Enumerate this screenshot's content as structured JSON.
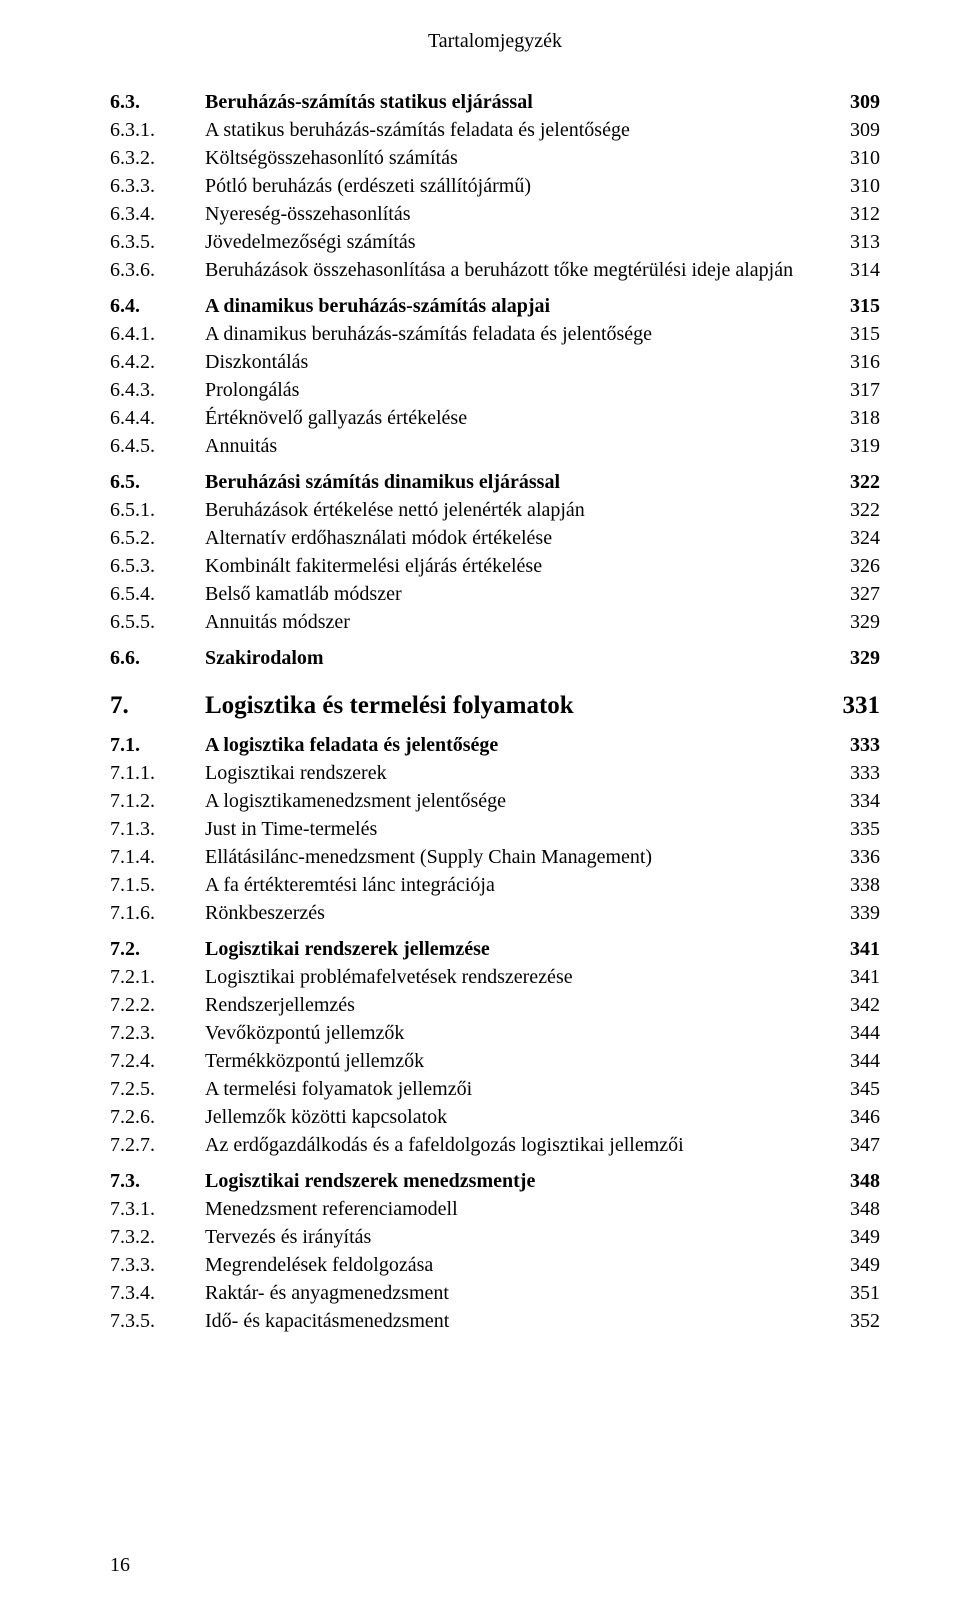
{
  "header": "Tartalomjegyzék",
  "footer_page": "16",
  "entries": [
    {
      "num": "6.3.",
      "title": "Beruházás-számítás statikus eljárással",
      "page": "309",
      "bold": true,
      "level": 2,
      "space_before": "none"
    },
    {
      "num": "6.3.1.",
      "title": "A statikus beruházás-számítás feladata és jelentősége",
      "page": "309",
      "bold": false,
      "level": 3,
      "space_before": "none"
    },
    {
      "num": "6.3.2.",
      "title": "Költségösszehasonlító számítás",
      "page": "310",
      "bold": false,
      "level": 3,
      "space_before": "none"
    },
    {
      "num": "6.3.3.",
      "title": "Pótló beruházás (erdészeti szállítójármű)",
      "page": "310",
      "bold": false,
      "level": 3,
      "space_before": "none"
    },
    {
      "num": "6.3.4.",
      "title": "Nyereség-összehasonlítás",
      "page": "312",
      "bold": false,
      "level": 3,
      "space_before": "none"
    },
    {
      "num": "6.3.5.",
      "title": "Jövedelmezőségi számítás",
      "page": "313",
      "bold": false,
      "level": 3,
      "space_before": "none"
    },
    {
      "num": "6.3.6.",
      "title": "Beruházások összehasonlítása a beruházott tőke megtérülési ideje alapján",
      "page": "314",
      "bold": false,
      "level": 3,
      "space_before": "none"
    },
    {
      "num": "6.4.",
      "title": "A dinamikus beruházás-számítás alapjai",
      "page": "315",
      "bold": true,
      "level": 2,
      "space_before": "sm"
    },
    {
      "num": "6.4.1.",
      "title": "A dinamikus beruházás-számítás feladata és jelentősége",
      "page": "315",
      "bold": false,
      "level": 3,
      "space_before": "none"
    },
    {
      "num": "6.4.2.",
      "title": "Diszkontálás",
      "page": "316",
      "bold": false,
      "level": 3,
      "space_before": "none"
    },
    {
      "num": "6.4.3.",
      "title": "Prolongálás",
      "page": "317",
      "bold": false,
      "level": 3,
      "space_before": "none"
    },
    {
      "num": "6.4.4.",
      "title": "Értéknövelő gallyazás értékelése",
      "page": "318",
      "bold": false,
      "level": 3,
      "space_before": "none"
    },
    {
      "num": "6.4.5.",
      "title": "Annuitás",
      "page": "319",
      "bold": false,
      "level": 3,
      "space_before": "none"
    },
    {
      "num": "6.5.",
      "title": "Beruházási számítás dinamikus eljárással",
      "page": "322",
      "bold": true,
      "level": 2,
      "space_before": "sm"
    },
    {
      "num": "6.5.1.",
      "title": "Beruházások értékelése nettó jelenérték alapján",
      "page": "322",
      "bold": false,
      "level": 3,
      "space_before": "none"
    },
    {
      "num": "6.5.2.",
      "title": "Alternatív erdőhasználati módok értékelése",
      "page": "324",
      "bold": false,
      "level": 3,
      "space_before": "none"
    },
    {
      "num": "6.5.3.",
      "title": "Kombinált fakitermelési eljárás értékelése",
      "page": "326",
      "bold": false,
      "level": 3,
      "space_before": "none"
    },
    {
      "num": "6.5.4.",
      "title": "Belső kamatláb módszer",
      "page": "327",
      "bold": false,
      "level": 3,
      "space_before": "none"
    },
    {
      "num": "6.5.5.",
      "title": "Annuitás módszer",
      "page": "329",
      "bold": false,
      "level": 3,
      "space_before": "none"
    },
    {
      "num": "6.6.",
      "title": "Szakirodalom",
      "page": "329",
      "bold": true,
      "level": 2,
      "space_before": "sm"
    },
    {
      "num": "7.",
      "title": "Logisztika és termelési folyamatok",
      "page": "331",
      "bold": true,
      "level": 1,
      "space_before": "md"
    },
    {
      "num": "7.1.",
      "title": "A logisztika feladata és jelentősége",
      "page": "333",
      "bold": true,
      "level": 2,
      "space_before": "sm"
    },
    {
      "num": "7.1.1.",
      "title": "Logisztikai rendszerek",
      "page": "333",
      "bold": false,
      "level": 3,
      "space_before": "none"
    },
    {
      "num": "7.1.2.",
      "title": "A logisztikamenedzsment jelentősége",
      "page": "334",
      "bold": false,
      "level": 3,
      "space_before": "none"
    },
    {
      "num": "7.1.3.",
      "title": "Just in Time-termelés",
      "page": "335",
      "bold": false,
      "level": 3,
      "space_before": "none"
    },
    {
      "num": "7.1.4.",
      "title": "Ellátásilánc-menedzsment (Supply Chain Management)",
      "page": "336",
      "bold": false,
      "level": 3,
      "space_before": "none"
    },
    {
      "num": "7.1.5.",
      "title": "A fa értékteremtési lánc integrációja",
      "page": "338",
      "bold": false,
      "level": 3,
      "space_before": "none"
    },
    {
      "num": "7.1.6.",
      "title": "Rönkbeszerzés",
      "page": "339",
      "bold": false,
      "level": 3,
      "space_before": "none"
    },
    {
      "num": "7.2.",
      "title": "Logisztikai rendszerek jellemzése",
      "page": "341",
      "bold": true,
      "level": 2,
      "space_before": "sm"
    },
    {
      "num": "7.2.1.",
      "title": "Logisztikai problémafelvetések rendszerezése",
      "page": "341",
      "bold": false,
      "level": 3,
      "space_before": "none"
    },
    {
      "num": "7.2.2.",
      "title": "Rendszerjellemzés",
      "page": "342",
      "bold": false,
      "level": 3,
      "space_before": "none"
    },
    {
      "num": "7.2.3.",
      "title": "Vevőközpontú jellemzők",
      "page": "344",
      "bold": false,
      "level": 3,
      "space_before": "none"
    },
    {
      "num": "7.2.4.",
      "title": "Termékközpontú jellemzők",
      "page": "344",
      "bold": false,
      "level": 3,
      "space_before": "none"
    },
    {
      "num": "7.2.5.",
      "title": "A termelési folyamatok jellemzői",
      "page": "345",
      "bold": false,
      "level": 3,
      "space_before": "none"
    },
    {
      "num": "7.2.6.",
      "title": "Jellemzők közötti kapcsolatok",
      "page": "346",
      "bold": false,
      "level": 3,
      "space_before": "none"
    },
    {
      "num": "7.2.7.",
      "title": "Az erdőgazdálkodás és a fafeldolgozás logisztikai jellemzői",
      "page": "347",
      "bold": false,
      "level": 3,
      "space_before": "none"
    },
    {
      "num": "7.3.",
      "title": "Logisztikai rendszerek menedzsmentje",
      "page": "348",
      "bold": true,
      "level": 2,
      "space_before": "sm"
    },
    {
      "num": "7.3.1.",
      "title": "Menedzsment referenciamodell",
      "page": "348",
      "bold": false,
      "level": 3,
      "space_before": "none"
    },
    {
      "num": "7.3.2.",
      "title": "Tervezés és irányítás",
      "page": "349",
      "bold": false,
      "level": 3,
      "space_before": "none"
    },
    {
      "num": "7.3.3.",
      "title": "Megrendelések feldolgozása",
      "page": "349",
      "bold": false,
      "level": 3,
      "space_before": "none"
    },
    {
      "num": "7.3.4.",
      "title": "Raktár- és anyagmenedzsment",
      "page": "351",
      "bold": false,
      "level": 3,
      "space_before": "none"
    },
    {
      "num": "7.3.5.",
      "title": "Idő- és kapacitásmenedzsment",
      "page": "352",
      "bold": false,
      "level": 3,
      "space_before": "none"
    }
  ]
}
